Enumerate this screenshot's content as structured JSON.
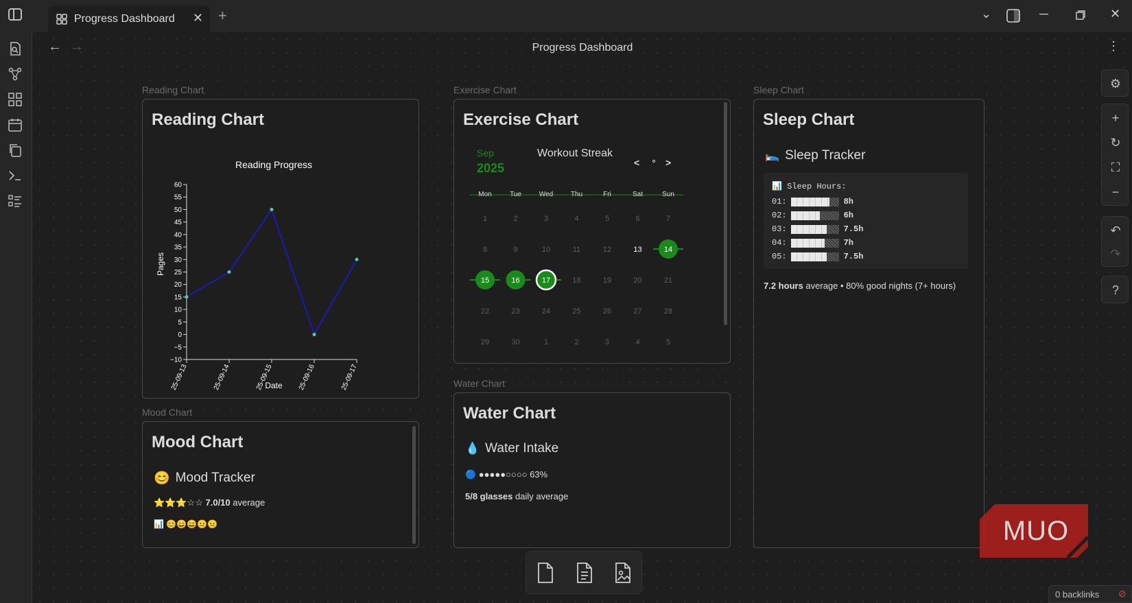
{
  "tab": {
    "title": "Progress Dashboard"
  },
  "view": {
    "title": "Progress Dashboard"
  },
  "nodes": {
    "reading": {
      "label": "Reading Chart",
      "heading": "Reading Chart"
    },
    "exercise": {
      "label": "Exercise Chart",
      "heading": "Exercise Chart"
    },
    "sleep": {
      "label": "Sleep Chart",
      "heading": "Sleep Chart"
    },
    "mood": {
      "label": "Mood Chart",
      "heading": "Mood Chart"
    },
    "water": {
      "label": "Water Chart",
      "heading": "Water Chart"
    }
  },
  "chart_data": {
    "type": "line",
    "title": "Reading Progress",
    "xlabel": "Date",
    "ylabel": "Pages",
    "x": [
      "25-09-13",
      "25-09-14",
      "25-09-15",
      "25-09-16",
      "25-09-17"
    ],
    "series": [
      {
        "values": [
          15,
          25,
          50,
          0,
          30
        ]
      }
    ],
    "ylim": [
      -10,
      60
    ],
    "yticks": [
      60,
      55,
      50,
      45,
      40,
      35,
      30,
      25,
      20,
      15,
      10,
      5,
      0,
      -5,
      -10
    ],
    "colors": {
      "line": "#1a1ab8",
      "point": "#5ac8a8"
    }
  },
  "calendar": {
    "month": "Sep",
    "year": "2025",
    "title": "Workout Streak",
    "prev": "<",
    "today": "∘",
    "next": ">",
    "daynames": [
      "Mon",
      "Tue",
      "Wed",
      "Thu",
      "Fri",
      "Sat",
      "Sun"
    ],
    "weeks": [
      [
        "1",
        "2",
        "3",
        "4",
        "5",
        "6",
        "7"
      ],
      [
        "8",
        "9",
        "10",
        "11",
        "12",
        "13",
        "14"
      ],
      [
        "15",
        "16",
        "17",
        "18",
        "19",
        "20",
        "21"
      ],
      [
        "22",
        "23",
        "24",
        "25",
        "26",
        "27",
        "28"
      ],
      [
        "29",
        "30",
        "1",
        "2",
        "3",
        "4",
        "5"
      ]
    ],
    "done": [
      "14",
      "15",
      "16",
      "17"
    ],
    "today_day": "17",
    "accent": "#1a8a1a"
  },
  "sleep": {
    "icon": "🛌",
    "title": "Sleep Tracker",
    "block_header": "📊 Sleep Hours:",
    "rows": [
      {
        "label": "01:",
        "value": "8h",
        "fill": 8
      },
      {
        "label": "02:",
        "value": "6h",
        "fill": 6
      },
      {
        "label": "03:",
        "value": "7.5h",
        "fill": 7.5
      },
      {
        "label": "04:",
        "value": "7h",
        "fill": 7
      },
      {
        "label": "05:",
        "value": "7.5h",
        "fill": 7.5
      }
    ],
    "summary_bold": "7.2 hours",
    "summary_rest": " average • 80% good nights (7+ hours)"
  },
  "mood": {
    "icon": "😊",
    "title": "Mood Tracker",
    "stars": "⭐⭐⭐☆☆",
    "score": "7.0/10",
    "score_rest": " average",
    "history": "📊 😊😄😄😐😐"
  },
  "water": {
    "icon": "💧",
    "title": "Water Intake",
    "bar": "🔵 ●●●●●○○○○ 63%",
    "summary_bold": "5/8 glasses",
    "summary_rest": " daily average"
  },
  "backlinks": "0 backlinks",
  "watermark": "MUO"
}
